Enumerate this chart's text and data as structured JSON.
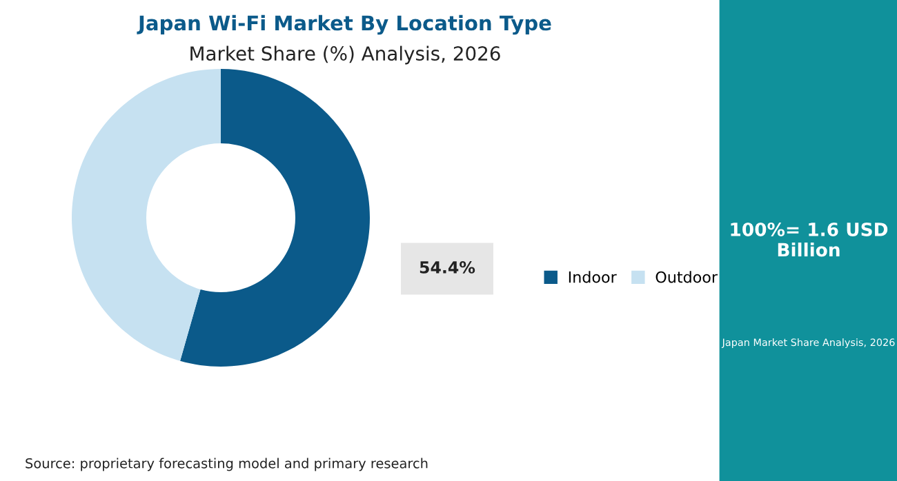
{
  "chart_data": {
    "type": "donut",
    "title": "Japan Wi-Fi Market By Location Type",
    "subtitle": "Market Share (%) Analysis, 2026",
    "categories": [
      "Indoor",
      "Outdoor"
    ],
    "values": [
      54.4,
      45.6
    ],
    "colors": [
      "#0b5a8a",
      "#c6e1f1"
    ],
    "value_labels": [
      "54.4%",
      null
    ],
    "legend": "right",
    "annotations": [
      "100%= 1.6 USD Billion",
      "Japan Market Share Analysis, 2026",
      "Source: proprietary forecasting model and primary research"
    ]
  }
}
